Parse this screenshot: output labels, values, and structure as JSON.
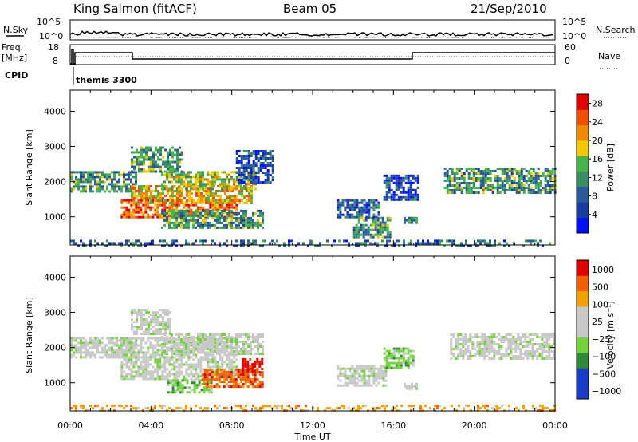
{
  "header": {
    "station": "King Salmon (fitACF)",
    "beam": "Beam 05",
    "date": "21/Sep/2010"
  },
  "top_panels": {
    "nsky_label": "N.Sky",
    "nsearch_label": "N.Search",
    "noise_ticks": [
      "10^5",
      "10^0"
    ],
    "freq_label_1": "Freq.",
    "freq_label_2": "[MHz]",
    "freq_ticks": [
      "18",
      "8"
    ],
    "nave_label": "Nave",
    "nave_ticks": [
      "60",
      "0"
    ],
    "cpid_label": "CPID",
    "cpid_value": "themis 3300"
  },
  "colors": {
    "power_scale": [
      "#0010ff",
      "#1a3c9e",
      "#2a5a9a",
      "#3a8c64",
      "#46b44a",
      "#f4c800",
      "#f08a00",
      "#ee5000",
      "#e00000"
    ],
    "velocity_scale": [
      "#1b3cc8",
      "#1b3cc8",
      "#2e8a36",
      "#74d23c",
      "#c8c8c8",
      "#c8c8c8",
      "#f2a000",
      "#f06000",
      "#e00000"
    ]
  },
  "chart_data": [
    {
      "type": "heatmap",
      "name": "power-panel",
      "ylabel": "Slant Range [km]",
      "ylim": [
        200,
        4600
      ],
      "yticks": [
        1000,
        2000,
        3000,
        4000
      ],
      "xlabel": "Time UT",
      "xlim": [
        0,
        24
      ],
      "xticks": [
        "00:00",
        "04:00",
        "08:00",
        "12:00",
        "16:00",
        "20:00",
        "00:00"
      ],
      "colorbar_label": "Power [dB]",
      "colorbar_ticks": [
        4,
        8,
        12,
        16,
        20,
        24,
        28
      ],
      "colorbar_range": [
        0,
        30
      ],
      "echo_regions": [
        {
          "t": [
            0.0,
            3.2
          ],
          "r": [
            1700,
            2300
          ],
          "level": 12
        },
        {
          "t": [
            2.5,
            8.2
          ],
          "r": [
            1000,
            1500
          ],
          "level": 24
        },
        {
          "t": [
            3.0,
            9.0
          ],
          "r": [
            1400,
            1900
          ],
          "level": 20
        },
        {
          "t": [
            4.5,
            9.2
          ],
          "r": [
            1800,
            2300
          ],
          "level": 16
        },
        {
          "t": [
            3.0,
            5.5
          ],
          "r": [
            2300,
            3000
          ],
          "level": 12
        },
        {
          "t": [
            4.5,
            9.5
          ],
          "r": [
            700,
            1200
          ],
          "level": 12
        },
        {
          "t": [
            8.2,
            10.0
          ],
          "r": [
            2000,
            2900
          ],
          "level": 6
        },
        {
          "t": [
            13.2,
            15.3
          ],
          "r": [
            1000,
            1500
          ],
          "level": 8
        },
        {
          "t": [
            14.0,
            15.8
          ],
          "r": [
            400,
            1000
          ],
          "level": 12
        },
        {
          "t": [
            15.5,
            17.2
          ],
          "r": [
            1500,
            2200
          ],
          "level": 6
        },
        {
          "t": [
            16.5,
            17.2
          ],
          "r": [
            800,
            1000
          ],
          "level": 10
        },
        {
          "t": [
            18.5,
            24.0
          ],
          "r": [
            1700,
            2400
          ],
          "level": 12
        },
        {
          "t": [
            0.0,
            24.0
          ],
          "r": [
            200,
            350
          ],
          "level": 8
        }
      ]
    },
    {
      "type": "heatmap",
      "name": "velocity-panel",
      "ylabel": "Slant Range [km]",
      "ylim": [
        200,
        4600
      ],
      "yticks": [
        1000,
        2000,
        3000,
        4000
      ],
      "xlabel": "Time UT",
      "xlim": [
        0,
        24
      ],
      "xticks": [
        "00:00",
        "04:00",
        "08:00",
        "12:00",
        "16:00",
        "20:00",
        "00:00"
      ],
      "colorbar_label": "Velocity [m s⁻¹]",
      "colorbar_ticks": [
        "1000",
        "500",
        "100",
        "25",
        "−25",
        "−100",
        "−500",
        "−1000"
      ],
      "echo_regions": [
        {
          "t": [
            0.0,
            3.2
          ],
          "r": [
            1700,
            2300
          ],
          "level": 4
        },
        {
          "t": [
            2.5,
            8.2
          ],
          "r": [
            1100,
            2300
          ],
          "level": 4
        },
        {
          "t": [
            4.5,
            9.5
          ],
          "r": [
            1800,
            2400
          ],
          "level": 4
        },
        {
          "t": [
            3.0,
            5.0
          ],
          "r": [
            2400,
            3100
          ],
          "level": 4
        },
        {
          "t": [
            4.8,
            7.0
          ],
          "r": [
            700,
            1100
          ],
          "level": 3
        },
        {
          "t": [
            6.5,
            9.5
          ],
          "r": [
            900,
            1400
          ],
          "level": 7
        },
        {
          "t": [
            8.5,
            9.5
          ],
          "r": [
            1300,
            1700
          ],
          "level": 8
        },
        {
          "t": [
            13.2,
            15.6
          ],
          "r": [
            900,
            1500
          ],
          "level": 4
        },
        {
          "t": [
            15.5,
            17.0
          ],
          "r": [
            1400,
            2000
          ],
          "level": 3
        },
        {
          "t": [
            16.5,
            17.2
          ],
          "r": [
            800,
            1000
          ],
          "level": 4
        },
        {
          "t": [
            18.8,
            24.0
          ],
          "r": [
            1700,
            2400
          ],
          "level": 4
        },
        {
          "t": [
            0.0,
            24.0
          ],
          "r": [
            200,
            380
          ],
          "level": 6
        }
      ]
    }
  ]
}
